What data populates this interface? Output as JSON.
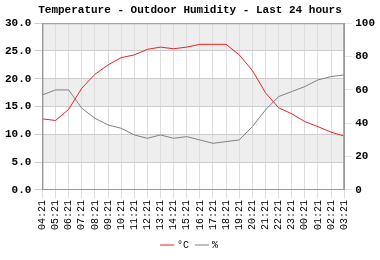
{
  "chart_data": {
    "type": "line",
    "title": "Temperature - Outdoor Humidity - Last 24 hours",
    "categories": [
      "04:21",
      "05:21",
      "06:21",
      "07:21",
      "08:21",
      "09:21",
      "10:21",
      "11:21",
      "12:21",
      "13:21",
      "14:21",
      "15:21",
      "16:21",
      "17:21",
      "18:21",
      "19:21",
      "20:21",
      "21:21",
      "22:21",
      "23:21",
      "00:21",
      "01:21",
      "02:21",
      "03:21"
    ],
    "series": [
      {
        "name": "°C",
        "color": "#ee2222",
        "axis": "y",
        "values": [
          12.8,
          12.5,
          14.5,
          18.3,
          20.8,
          22.5,
          23.8,
          24.3,
          25.3,
          25.7,
          25.4,
          25.7,
          26.2,
          26.2,
          26.2,
          24.3,
          21.5,
          17.5,
          14.8,
          13.7,
          12.3,
          11.4,
          10.4,
          9.7
        ]
      },
      {
        "name": "%",
        "color": "#808080",
        "axis": "y2",
        "values": [
          57,
          60,
          60,
          49,
          43,
          39,
          37,
          33,
          31,
          33,
          31,
          32,
          30,
          28,
          29,
          30,
          38,
          48,
          56,
          59,
          62,
          66,
          68,
          69
        ]
      }
    ],
    "ylim": [
      0,
      30
    ],
    "yticks": [
      {
        "value": 0,
        "label": "0.0"
      },
      {
        "value": 5,
        "label": "5.0"
      },
      {
        "value": 10,
        "label": "10.0"
      },
      {
        "value": 15,
        "label": "15.0"
      },
      {
        "value": 20,
        "label": "20.0"
      },
      {
        "value": 25,
        "label": "25.0"
      },
      {
        "value": 30,
        "label": "30.0"
      }
    ],
    "y2lim": [
      0,
      100
    ],
    "y2ticks": [
      0,
      20,
      40,
      60,
      80,
      100
    ],
    "grid": true,
    "legend": "bottom"
  }
}
